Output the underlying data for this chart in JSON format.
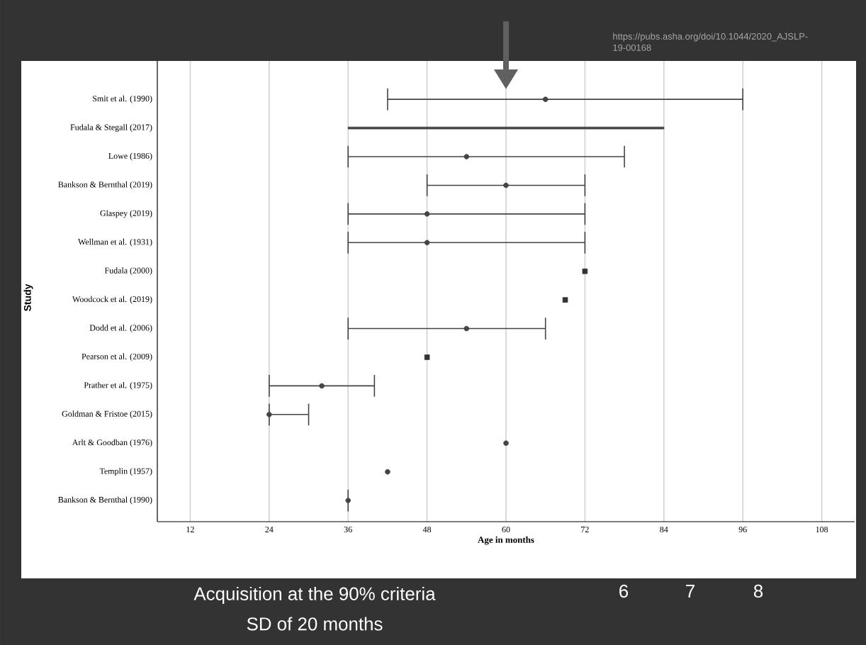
{
  "chart_data": {
    "type": "scatter",
    "orientation": "horizontal",
    "xlabel": "Age in months",
    "ylabel": "Study",
    "categories": [
      "Smit et al. (1990)",
      "Fudala & Stegall (2017)",
      "Lowe (1986)",
      "Bankson & Bernthal (2019)",
      "Glaspey (2019)",
      "Wellman et al. (1931)",
      "Fudala (2000)",
      "Woodcock et al. (2019)",
      "Dodd et al. (2006)",
      "Pearson et al. (2009)",
      "Prather et al. (1975)",
      "Goldman & Fristoe (2015)",
      "Arlt & Goodban (1976)",
      "Templin (1957)",
      "Bankson & Bernthal (1990)"
    ],
    "series": [
      {
        "color": "#444444",
        "values": [
          66,
          null,
          54,
          60,
          48,
          48,
          null,
          null,
          54,
          null,
          32,
          24,
          60,
          42,
          36
        ],
        "errors": [
          [
            42,
            96
          ],
          null,
          [
            36,
            78
          ],
          [
            48,
            72
          ],
          [
            36,
            72
          ],
          [
            36,
            72
          ],
          null,
          null,
          [
            36,
            66
          ],
          null,
          [
            24,
            40
          ],
          [
            24,
            30
          ],
          null,
          null,
          [
            36,
            36
          ]
        ]
      },
      {
        "type": "bar",
        "color": "#444444",
        "base": [
          null,
          36,
          null,
          null,
          null,
          null,
          null,
          null,
          null,
          null,
          null,
          null,
          null,
          null,
          null
        ],
        "values": [
          null,
          48,
          null,
          null,
          null,
          null,
          null,
          null,
          null,
          null,
          null,
          null,
          null,
          null,
          null
        ]
      },
      {
        "type": "scatter",
        "color": "#333333",
        "marker": "square",
        "values": [
          null,
          null,
          null,
          null,
          null,
          null,
          72,
          69,
          null,
          48,
          null,
          null,
          null,
          null,
          null
        ]
      }
    ],
    "xlim": [
      7,
      113
    ],
    "xticks": [
      12,
      24,
      36,
      48,
      60,
      72,
      84,
      96,
      108
    ],
    "grid": "x",
    "marker": "circle",
    "annotations": [
      "https://pubs.asha.org/doi/10.1044/2020_AJSLP-19-00168",
      "Acquisition at the 90% criteria",
      "SD of 20 months",
      "6",
      "7",
      "8"
    ]
  }
}
